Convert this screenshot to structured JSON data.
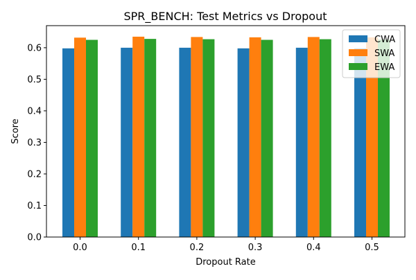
{
  "chart_data": {
    "type": "bar",
    "title": "SPR_BENCH: Test Metrics vs Dropout",
    "xlabel": "Dropout Rate",
    "ylabel": "Score",
    "categories": [
      "0.0",
      "0.1",
      "0.2",
      "0.3",
      "0.4",
      "0.5"
    ],
    "ylim": [
      0,
      0.67
    ],
    "yticks": [
      0.0,
      0.1,
      0.2,
      0.3,
      0.4,
      0.5,
      0.6
    ],
    "ytick_labels": [
      "0.0",
      "0.1",
      "0.2",
      "0.3",
      "0.4",
      "0.5",
      "0.6"
    ],
    "grid": false,
    "legend_position": "top-right",
    "series": [
      {
        "name": "CWA",
        "color": "#1f77b4",
        "values": [
          0.598,
          0.6,
          0.6,
          0.598,
          0.6,
          0.598
        ]
      },
      {
        "name": "SWA",
        "color": "#ff7f0e",
        "values": [
          0.632,
          0.635,
          0.634,
          0.633,
          0.634,
          0.633
        ]
      },
      {
        "name": "EWA",
        "color": "#2ca02c",
        "values": [
          0.625,
          0.628,
          0.627,
          0.625,
          0.627,
          0.626
        ]
      }
    ]
  }
}
